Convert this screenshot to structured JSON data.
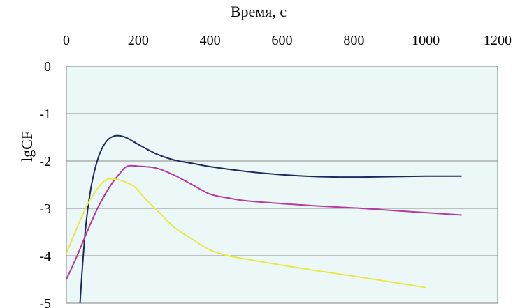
{
  "chart_data": {
    "type": "line",
    "xlabel": "Время, с",
    "ylabel": "lgCF",
    "xlim": [
      0,
      1200
    ],
    "ylim": [
      -5,
      0
    ],
    "x_ticks": [
      "0",
      "200",
      "400",
      "600",
      "800",
      "1000",
      "1200"
    ],
    "y_ticks": [
      "0",
      "-1",
      "-2",
      "-3",
      "-4",
      "-5"
    ],
    "x_axis_position": "top",
    "grid": true,
    "legend": "none",
    "plot_background": "#ecf8f8",
    "series": [
      {
        "color": "#1f2a5c",
        "x": [
          38,
          45,
          55,
          70,
          90,
          110,
          130,
          150,
          170,
          200,
          250,
          300,
          350,
          400,
          500,
          600,
          700,
          800,
          900,
          1000,
          1100
        ],
        "y": [
          -5.0,
          -4.2,
          -3.3,
          -2.5,
          -1.9,
          -1.6,
          -1.48,
          -1.47,
          -1.52,
          -1.65,
          -1.85,
          -1.98,
          -2.05,
          -2.12,
          -2.22,
          -2.29,
          -2.33,
          -2.34,
          -2.33,
          -2.32,
          -2.32
        ]
      },
      {
        "color": "#b23a9e",
        "x": [
          0,
          30,
          60,
          90,
          120,
          150,
          170,
          200,
          250,
          300,
          350,
          400,
          450,
          500,
          600,
          700,
          800,
          900,
          1000,
          1100
        ],
        "y": [
          -4.5,
          -4.0,
          -3.45,
          -2.95,
          -2.55,
          -2.25,
          -2.11,
          -2.11,
          -2.15,
          -2.3,
          -2.5,
          -2.7,
          -2.78,
          -2.84,
          -2.9,
          -2.95,
          -2.99,
          -3.04,
          -3.09,
          -3.14
        ]
      },
      {
        "color": "#e8e84a",
        "x": [
          0,
          30,
          60,
          90,
          110,
          130,
          160,
          190,
          220,
          260,
          300,
          350,
          400,
          450,
          500,
          600,
          700,
          800,
          900,
          1000
        ],
        "y": [
          -3.95,
          -3.4,
          -2.9,
          -2.55,
          -2.4,
          -2.38,
          -2.43,
          -2.55,
          -2.8,
          -3.1,
          -3.4,
          -3.65,
          -3.88,
          -4.0,
          -4.07,
          -4.2,
          -4.32,
          -4.43,
          -4.55,
          -4.67
        ]
      }
    ]
  }
}
